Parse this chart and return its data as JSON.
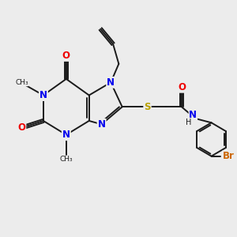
{
  "bg_color": "#ECECEC",
  "bond_color": "#1a1a1a",
  "colors": {
    "N": "#0000EE",
    "O": "#EE0000",
    "S": "#B8A000",
    "Br": "#CC6600",
    "C": "#1a1a1a",
    "H": "#1a1a1a"
  },
  "lw": 1.4,
  "fs": 8.5,
  "fs_small": 7.0
}
